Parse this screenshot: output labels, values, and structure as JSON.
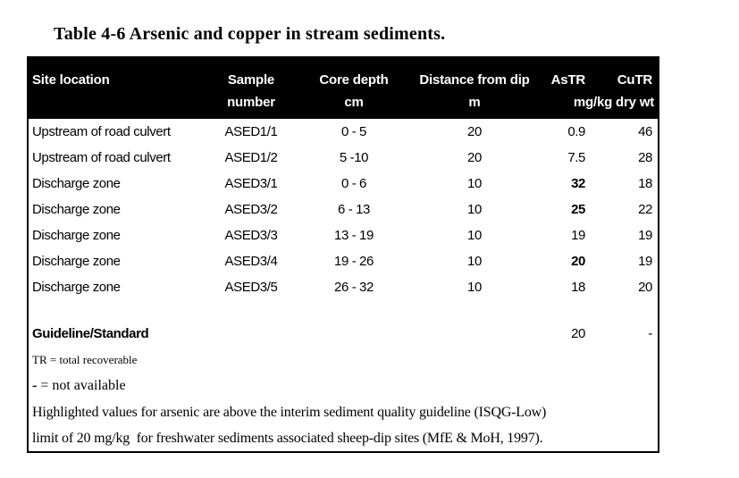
{
  "title": "Table 4-6 Arsenic and copper in stream sediments.",
  "colors": {
    "header_bg": "#000000",
    "header_text": "#ffffff",
    "body_text": "#000000",
    "border": "#000000",
    "background": "#ffffff"
  },
  "table": {
    "header": {
      "site": "Site location",
      "sample_line1": "Sample",
      "sample_line2": "number",
      "core_line1": "Core depth",
      "core_line2": "cm",
      "distance_line1": "Distance from dip",
      "distance_line2": "m",
      "as": "AsTR",
      "cu": "CuTR",
      "unit": "mg/kg dry wt"
    },
    "rows": [
      {
        "site": "Upstream of road culvert",
        "sample": "ASED1/1",
        "core_depth": "0 - 5",
        "distance": "20",
        "as_tr": "0.9",
        "as_bold": false,
        "cu_tr": "46"
      },
      {
        "site": "Upstream of road culvert",
        "sample": "ASED1/2",
        "core_depth": "5 -10",
        "distance": "20",
        "as_tr": "7.5",
        "as_bold": false,
        "cu_tr": "28"
      },
      {
        "site": "Discharge zone",
        "sample": "ASED3/1",
        "core_depth": "0 - 6",
        "distance": "10",
        "as_tr": "32",
        "as_bold": true,
        "cu_tr": "18"
      },
      {
        "site": "Discharge zone",
        "sample": "ASED3/2",
        "core_depth": "6 - 13",
        "distance": "10",
        "as_tr": "25",
        "as_bold": true,
        "cu_tr": "22"
      },
      {
        "site": "Discharge zone",
        "sample": "ASED3/3",
        "core_depth": "13 - 19",
        "distance": "10",
        "as_tr": "19",
        "as_bold": false,
        "cu_tr": "19"
      },
      {
        "site": "Discharge zone",
        "sample": "ASED3/4",
        "core_depth": "19 - 26",
        "distance": "10",
        "as_tr": "20",
        "as_bold": true,
        "cu_tr": "19"
      },
      {
        "site": "Discharge zone",
        "sample": "ASED3/5",
        "core_depth": "26 - 32",
        "distance": "10",
        "as_tr": "18",
        "as_bold": false,
        "cu_tr": "20"
      }
    ],
    "guideline": {
      "label": "Guideline/Standard",
      "as_tr": "20",
      "cu_tr": "-"
    },
    "notes": {
      "tr": "TR = total recoverable",
      "dash_symbol": "-",
      "dash_text": " = not available"
    },
    "footnote_lines": [
      "Highlighted values for arsenic are above the interim sediment quality guideline (ISQG-Low)",
      "limit of 20 mg/kg  for freshwater sediments associated sheep-dip sites (MfE & MoH, 1997)."
    ]
  }
}
